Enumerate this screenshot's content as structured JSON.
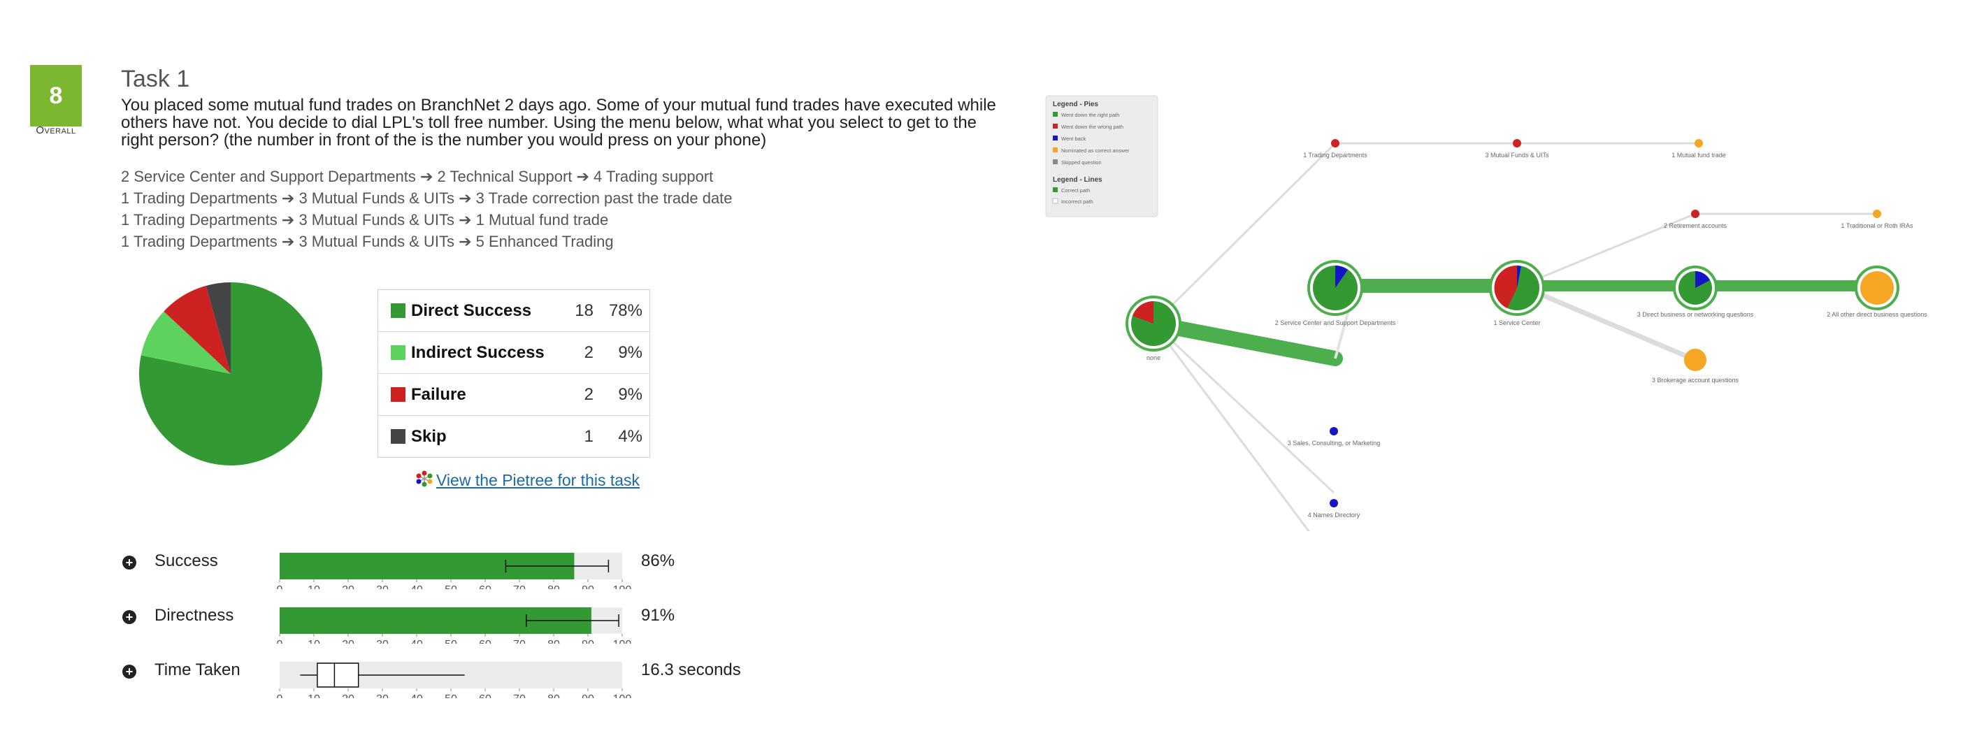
{
  "task": {
    "score": "8",
    "score_label": "Overall",
    "title": "Task 1",
    "description": "You placed some mutual fund trades on BranchNet 2 days ago. Some of your mutual fund trades have executed while others have not. You decide to dial LPL's toll free number. Using the menu below, what what you select to get to the right person? (the number in front of the is the number you would press on your phone)"
  },
  "paths": [
    "2 Service Center and Support Departments ➔ 2 Technical Support ➔ 4 Trading support",
    "1 Trading Departments ➔ 3 Mutual Funds & UITs ➔ 3 Trade correction past the trade date",
    "1 Trading Departments ➔ 3 Mutual Funds & UITs ➔ 1 Mutual fund trade",
    "1 Trading Departments ➔ 3 Mutual Funds & UITs ➔ 5 Enhanced Trading"
  ],
  "colors": {
    "direct_success": "#339933",
    "indirect_success": "#5dd35d",
    "failure": "#cc2222",
    "skip": "#444444",
    "score_badge": "#7cb82f",
    "nominated": "#f5a623",
    "went_back": "#1515c8"
  },
  "results": [
    {
      "label": "Direct Success",
      "count": "18",
      "pct": "78%",
      "color": "#339933"
    },
    {
      "label": "Indirect Success",
      "count": "2",
      "pct": "9%",
      "color": "#5dd35d"
    },
    {
      "label": "Failure",
      "count": "2",
      "pct": "9%",
      "color": "#cc2222"
    },
    {
      "label": "Skip",
      "count": "1",
      "pct": "4%",
      "color": "#444444"
    }
  ],
  "pietree_link": "View the Pietree for this task",
  "metrics": [
    {
      "label": "Success",
      "value_text": "86%"
    },
    {
      "label": "Directness",
      "value_text": "91%"
    },
    {
      "label": "Time Taken",
      "value_text": "16.3 seconds"
    }
  ],
  "chart_data": [
    {
      "type": "pie",
      "categories": [
        "Direct Success",
        "Indirect Success",
        "Failure",
        "Skip"
      ],
      "values": [
        18,
        2,
        2,
        1
      ]
    },
    {
      "type": "bar",
      "orientation": "horizontal",
      "categories": [
        "Success"
      ],
      "values": [
        86
      ],
      "error_low": 66,
      "error_high": 96,
      "xlim": [
        0,
        100
      ],
      "xticks": [
        0,
        10,
        20,
        30,
        40,
        50,
        60,
        70,
        80,
        90,
        100
      ]
    },
    {
      "type": "bar",
      "orientation": "horizontal",
      "categories": [
        "Directness"
      ],
      "values": [
        91
      ],
      "error_low": 72,
      "error_high": 99,
      "xlim": [
        0,
        100
      ],
      "xticks": [
        0,
        10,
        20,
        30,
        40,
        50,
        60,
        70,
        80,
        90,
        100
      ]
    },
    {
      "type": "boxplot",
      "categories": [
        "Time Taken"
      ],
      "whisker_low": 6,
      "q1": 11,
      "median": 16,
      "q3": 23,
      "whisker_high": 54,
      "xlim": [
        0,
        100
      ],
      "xticks": [
        0,
        10,
        20,
        30,
        40,
        50,
        60,
        70,
        80,
        90,
        100
      ]
    }
  ],
  "pietree": {
    "legend_pies_title": "Legend - Pies",
    "legend_pies": [
      {
        "label": "Went down the right path",
        "color": "#339933"
      },
      {
        "label": "Went down the wrong path",
        "color": "#cc2222"
      },
      {
        "label": "Went back",
        "color": "#1515c8"
      },
      {
        "label": "Nominated as correct answer",
        "color": "#f5a623"
      },
      {
        "label": "Skipped question",
        "color": "#888888"
      }
    ],
    "legend_lines_title": "Legend - Lines",
    "legend_lines": [
      {
        "label": "Correct path",
        "color": "#339933"
      },
      {
        "label": "Incorrect path",
        "color": "#dddddd"
      }
    ],
    "nodes": [
      {
        "id": "root",
        "label": "none"
      },
      {
        "id": "scsd",
        "label": "2 Service Center and Support Departments"
      },
      {
        "id": "sc",
        "label": "1 Service Center"
      },
      {
        "id": "dbn",
        "label": "3 Direct business or networking questions"
      },
      {
        "id": "oth",
        "label": "2 All other direct business questions"
      },
      {
        "id": "ret",
        "label": "2 Retirement accounts"
      },
      {
        "id": "trad",
        "label": "1 Traditional or Roth IRAs"
      },
      {
        "id": "brok",
        "label": "3 Brokerage account questions"
      },
      {
        "id": "td",
        "label": "1 Trading Departments"
      },
      {
        "id": "mfu",
        "label": "3 Mutual Funds & UITs"
      },
      {
        "id": "mft",
        "label": "1 Mutual fund trade"
      },
      {
        "id": "sales",
        "label": "3 Sales, Consulting, or Marketing"
      },
      {
        "id": "bd",
        "label": "4 Names Directory"
      }
    ]
  }
}
